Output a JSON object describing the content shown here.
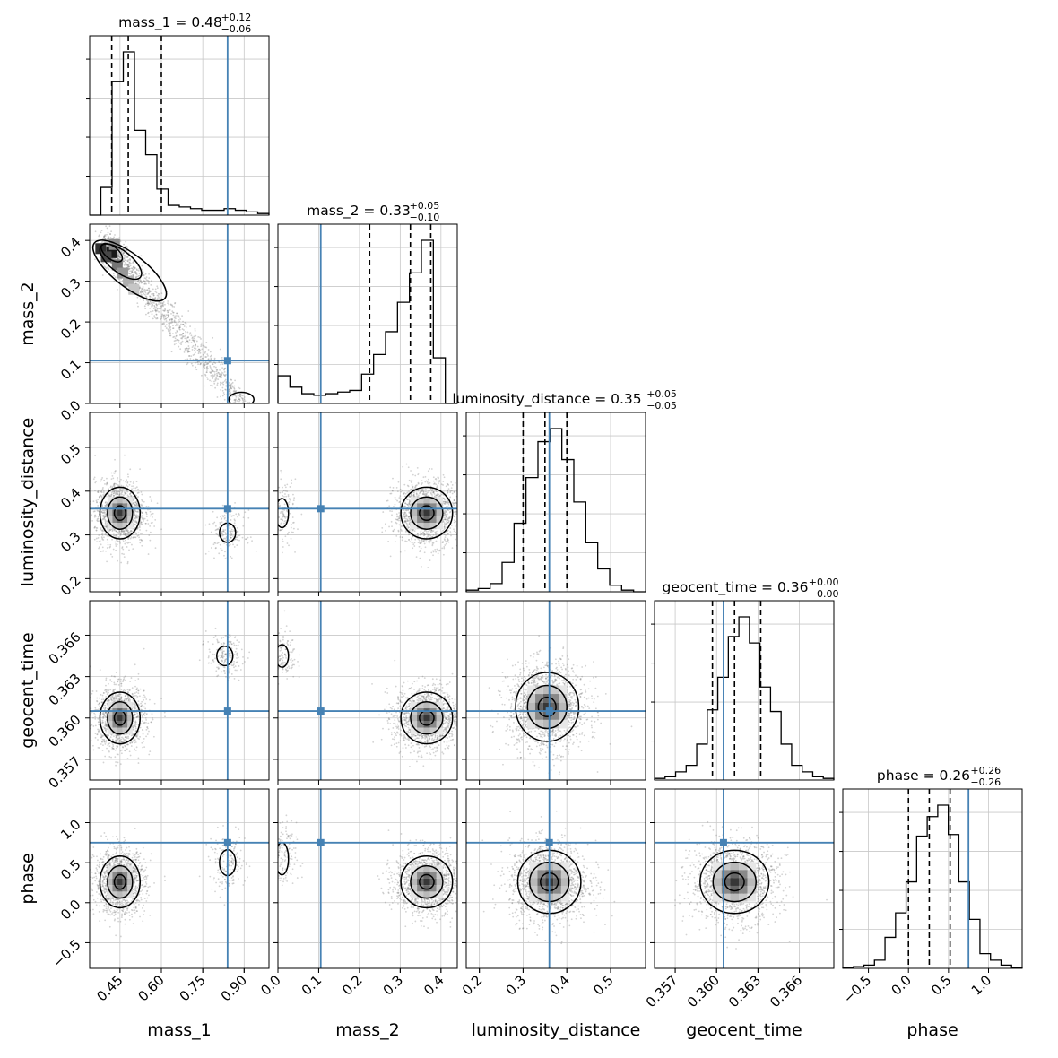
{
  "chart_data": {
    "type": "corner",
    "parameters": [
      {
        "name": "mass_1",
        "label": "mass_1",
        "range": [
          0.34,
          0.99
        ],
        "ticks": [
          0.45,
          0.6,
          0.75,
          0.9
        ],
        "tick_labels": [
          "0.45",
          "0.60",
          "0.75",
          "0.90"
        ],
        "truth": 0.84,
        "quantiles": [
          0.42,
          0.48,
          0.6
        ],
        "median": 0.48,
        "err_plus": 0.12,
        "err_minus": 0.06,
        "title": "mass_1 = 0.48",
        "title_sup": "+0.12",
        "title_sub": "−0.06"
      },
      {
        "name": "mass_2",
        "label": "mass_2",
        "range": [
          0.0,
          0.44
        ],
        "ticks": [
          0.0,
          0.1,
          0.2,
          0.3,
          0.4
        ],
        "tick_labels": [
          "0.0",
          "0.1",
          "0.2",
          "0.3",
          "0.4"
        ],
        "truth": 0.105,
        "quantiles": [
          0.225,
          0.325,
          0.375
        ],
        "median": 0.33,
        "err_plus": 0.05,
        "err_minus": 0.1,
        "title": "mass_2 = 0.33",
        "title_sup": "+0.05",
        "title_sub": "−0.10"
      },
      {
        "name": "luminosity_distance",
        "label": "luminosity_distance",
        "range": [
          0.17,
          0.58
        ],
        "ticks": [
          0.2,
          0.3,
          0.4,
          0.5
        ],
        "tick_labels": [
          "0.2",
          "0.3",
          "0.4",
          "0.5"
        ],
        "truth": 0.36,
        "quantiles": [
          0.3,
          0.35,
          0.4
        ],
        "median": 0.35,
        "err_plus": 0.05,
        "err_minus": 0.05,
        "title": "luminosity_distance = 0.35",
        "title_sup": "+0.05",
        "title_sub": "−0.05"
      },
      {
        "name": "geocent_time",
        "label": "geocent_time",
        "range": [
          0.3555,
          0.3685
        ],
        "ticks": [
          0.357,
          0.36,
          0.363,
          0.366
        ],
        "tick_labels": [
          "0.357",
          "0.360",
          "0.363",
          "0.366"
        ],
        "truth": 0.3605,
        "quantiles": [
          0.3597,
          0.3613,
          0.3632
        ],
        "median": 0.36,
        "err_plus": 0.0,
        "err_minus": 0.0,
        "title": "geocent_time = 0.36",
        "title_sup": "+0.00",
        "title_sub": "−0.00"
      },
      {
        "name": "phase",
        "label": "phase",
        "range": [
          -0.82,
          1.42
        ],
        "ticks": [
          -0.5,
          0.0,
          0.5,
          1.0
        ],
        "tick_labels": [
          "−0.5",
          "0.0",
          "0.5",
          "1.0"
        ],
        "truth": 0.75,
        "quantiles": [
          0.0,
          0.26,
          0.52
        ],
        "median": 0.26,
        "err_plus": 0.26,
        "err_minus": 0.26,
        "title": "phase = 0.26",
        "title_sup": "+0.26",
        "title_sub": "−0.26"
      }
    ],
    "histograms_1d": [
      [
        0.0,
        0.17,
        0.82,
        1.0,
        0.52,
        0.37,
        0.16,
        0.06,
        0.05,
        0.04,
        0.03,
        0.03,
        0.04,
        0.03,
        0.02,
        0.01
      ],
      [
        0.17,
        0.1,
        0.06,
        0.05,
        0.06,
        0.07,
        0.08,
        0.18,
        0.3,
        0.44,
        0.62,
        0.8,
        1.0,
        0.28,
        0.0
      ],
      [
        0.01,
        0.02,
        0.05,
        0.18,
        0.42,
        0.7,
        0.92,
        1.0,
        0.81,
        0.55,
        0.3,
        0.14,
        0.04,
        0.01,
        0.0
      ],
      [
        0.01,
        0.02,
        0.05,
        0.09,
        0.22,
        0.43,
        0.63,
        0.88,
        1.0,
        0.84,
        0.57,
        0.42,
        0.22,
        0.09,
        0.05,
        0.02,
        0.01
      ],
      [
        0.005,
        0.01,
        0.02,
        0.05,
        0.19,
        0.34,
        0.53,
        0.81,
        0.93,
        1.0,
        0.82,
        0.53,
        0.3,
        0.09,
        0.05,
        0.02,
        0.005
      ]
    ],
    "truth_color": "#4682b4",
    "quantile_style": "dashed",
    "grid": true,
    "legend": "none"
  }
}
